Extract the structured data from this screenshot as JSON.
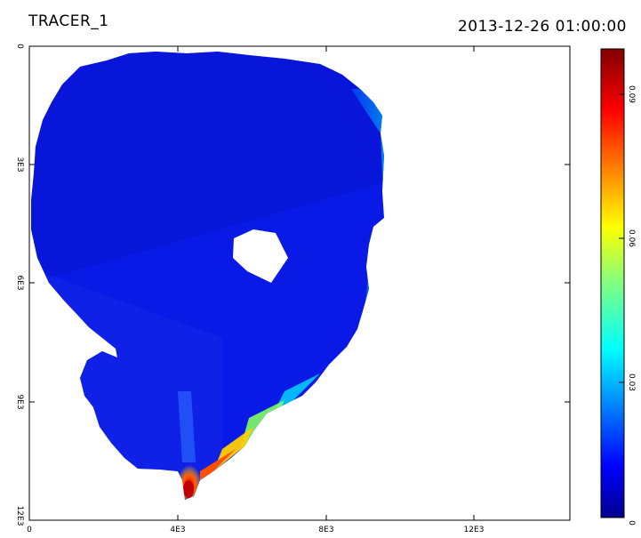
{
  "chart_data": {
    "type": "heatmap",
    "title": "TRACER_1",
    "timestamp": "2013-12-26 01:00:00",
    "x_ticks": [
      "0",
      "4E3",
      "8E3",
      "12E3"
    ],
    "x_tick_values": [
      0,
      4000,
      8000,
      12000
    ],
    "y_ticks": [
      "0",
      "3E3",
      "6E3",
      "9E3",
      "12E3"
    ],
    "y_tick_values": [
      0,
      3000,
      6000,
      9000,
      12000
    ],
    "xlim": [
      0,
      15000
    ],
    "ylim": [
      0,
      12000
    ],
    "colorbar": {
      "ticks": [
        "0",
        "0.03",
        "0.06",
        "0.09"
      ],
      "tick_values": [
        0,
        0.03,
        0.06,
        0.09
      ],
      "range": [
        0,
        0.105
      ],
      "colormap": "jet"
    },
    "field_description_values": {
      "background_concentration": 0.005,
      "max_concentration": 0.1,
      "max_location_x": 4200,
      "max_location_y": 11400
    }
  }
}
